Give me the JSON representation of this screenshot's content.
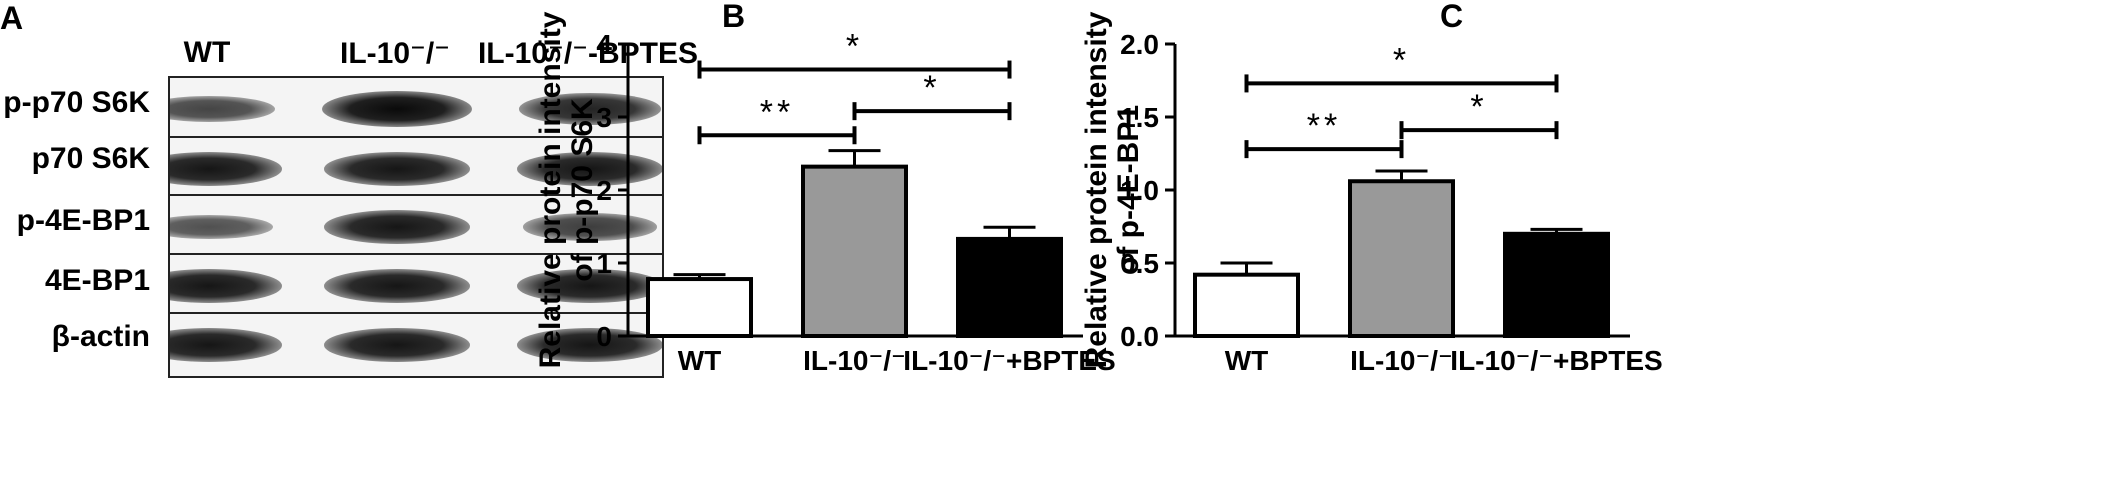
{
  "panelA": {
    "letter": "A",
    "lanes": [
      "WT",
      "IL-10⁻/⁻",
      "IL-10⁻/⁻-BPTES"
    ],
    "rows": [
      {
        "label": "p-p70 S6K",
        "bands": [
          0.55,
          1.0,
          0.8
        ]
      },
      {
        "label": "p70 S6K",
        "bands": [
          0.9,
          0.9,
          0.9
        ]
      },
      {
        "label": "p-4E-BP1",
        "bands": [
          0.45,
          0.9,
          0.6
        ]
      },
      {
        "label": "4E-BP1",
        "bands": [
          0.9,
          0.9,
          0.9
        ]
      },
      {
        "label": "β-actin",
        "bands": [
          0.9,
          0.9,
          0.9
        ]
      }
    ]
  },
  "chart_data": [
    {
      "panel": "B",
      "type": "bar",
      "categories": [
        "WT",
        "IL-10⁻/⁻",
        "IL-10⁻/⁻+BPTES"
      ],
      "values": [
        0.78,
        2.32,
        1.33
      ],
      "errors": [
        0.06,
        0.22,
        0.16
      ],
      "bar_colors": [
        "#ffffff",
        "#999999",
        "#000000"
      ],
      "ylabel_line1": "Relative protein intensity",
      "ylabel_line2": "of p-p70 S6K",
      "ylim": [
        0,
        4
      ],
      "yticks": [
        "0",
        "1",
        "2",
        "3",
        "4"
      ],
      "significance": [
        {
          "from": 0,
          "to": 2,
          "label": "*",
          "y": 3.65
        },
        {
          "from": 0,
          "to": 1,
          "label": "**",
          "y": 2.75
        },
        {
          "from": 1,
          "to": 2,
          "label": "*",
          "y": 3.08
        }
      ]
    },
    {
      "panel": "C",
      "type": "bar",
      "categories": [
        "WT",
        "IL-10⁻/⁻",
        "IL-10⁻/⁻+BPTES"
      ],
      "values": [
        0.42,
        1.06,
        0.7
      ],
      "errors": [
        0.08,
        0.07,
        0.03
      ],
      "bar_colors": [
        "#ffffff",
        "#999999",
        "#000000"
      ],
      "ylabel_line1": "Relative protein intensity",
      "ylabel_line2": "of p-4E-BP1",
      "ylim": [
        0,
        2
      ],
      "yticks": [
        "0.0",
        "0.5",
        "1.0",
        "1.5",
        "2.0"
      ],
      "significance": [
        {
          "from": 0,
          "to": 2,
          "label": "*",
          "y": 1.73
        },
        {
          "from": 0,
          "to": 1,
          "label": "**",
          "y": 1.28
        },
        {
          "from": 1,
          "to": 2,
          "label": "*",
          "y": 1.41
        }
      ]
    }
  ]
}
